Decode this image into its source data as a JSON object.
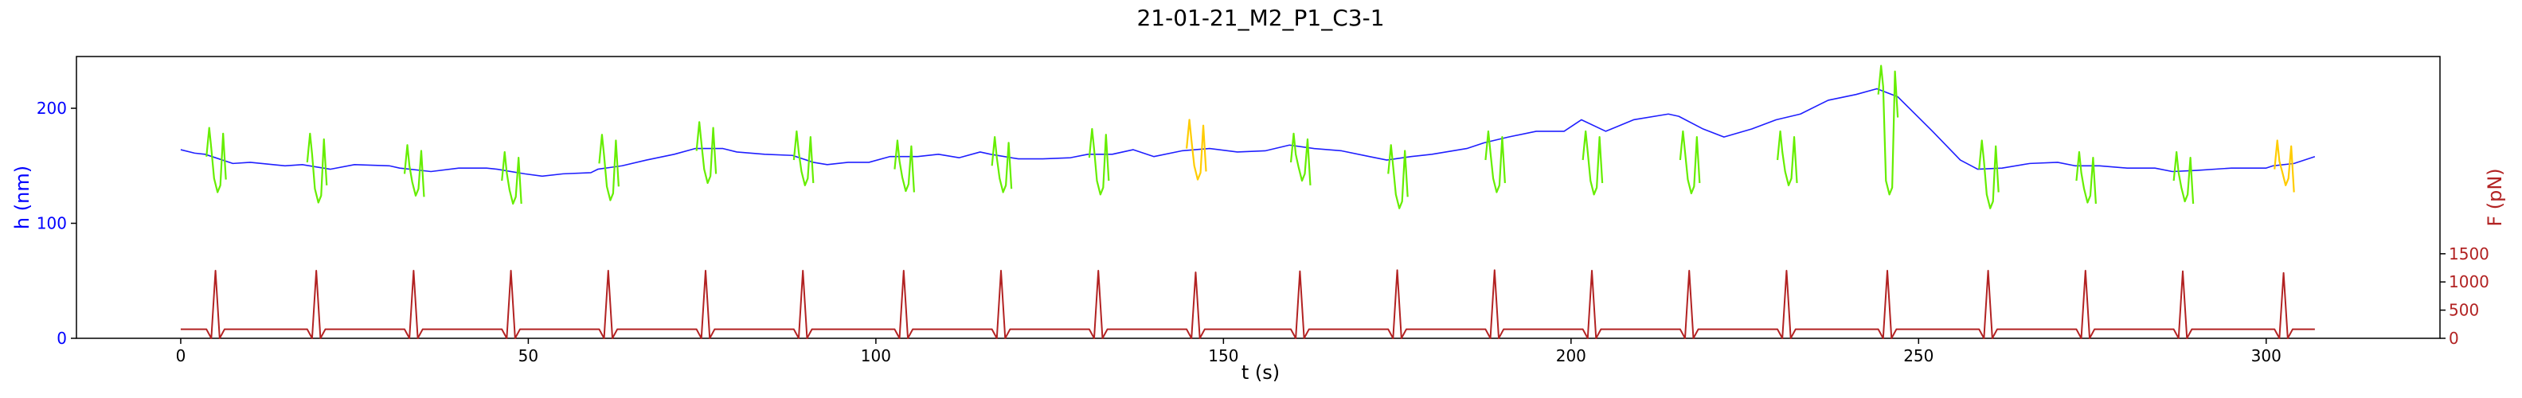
{
  "chart_data": {
    "type": "line",
    "title": "21-01-21_M2_P1_C3-1",
    "xlabel": "t (s)",
    "ylabel_left": "h (nm)",
    "ylabel_right": "F (pN)",
    "xlim": [
      -15,
      325
    ],
    "ylim_left": [
      0,
      245
    ],
    "ylim_right": [
      0,
      5000
    ],
    "x_ticks": [
      "0",
      "50",
      "100",
      "150",
      "200",
      "250",
      "300"
    ],
    "y_ticks_left": [
      "0",
      "100",
      "200"
    ],
    "y_ticks_right": [
      "0",
      "500",
      "1000",
      "1500"
    ],
    "grid": false,
    "colors": {
      "h_baseline": "#1f1fff",
      "h_indent_normal": "#66ee00",
      "h_indent_flagged": "#ffcc00",
      "force": "#b22222",
      "left_axis": "#0000ff",
      "right_axis": "#b22222"
    },
    "pulse_times": [
      5,
      19.5,
      33.5,
      47.5,
      61.5,
      75.5,
      89.5,
      104,
      118,
      132,
      146,
      161,
      175,
      189,
      203,
      217,
      231,
      245.5,
      260,
      274,
      288,
      302.5
    ],
    "pulse_peaks": [
      1200,
      1200,
      1200,
      1200,
      1200,
      1200,
      1200,
      1200,
      1200,
      1200,
      1170,
      1190,
      1210,
      1210,
      1200,
      1200,
      1200,
      1200,
      1200,
      1200,
      1190,
      1160
    ],
    "force_baseline": 160,
    "indent_min_h": [
      127,
      118,
      124,
      117,
      120,
      135,
      133,
      128,
      127,
      125,
      138,
      137,
      113,
      127,
      125,
      126,
      133,
      125,
      113,
      118,
      119,
      133
    ],
    "indent_pre_peak": [
      183,
      178,
      168,
      162,
      177,
      188,
      180,
      172,
      175,
      182,
      190,
      178,
      168,
      180,
      180,
      180,
      180,
      237,
      172,
      162,
      162,
      172
    ],
    "indent_flagged": [
      false,
      false,
      false,
      false,
      false,
      false,
      false,
      false,
      false,
      false,
      true,
      false,
      false,
      false,
      false,
      false,
      false,
      false,
      false,
      false,
      false,
      true
    ],
    "h_baseline_points": [
      [
        0,
        164
      ],
      [
        2,
        161
      ],
      [
        3.5,
        160
      ],
      [
        7.5,
        152
      ],
      [
        10,
        153
      ],
      [
        15,
        150
      ],
      [
        17.5,
        151
      ],
      [
        21.5,
        147
      ],
      [
        25,
        151
      ],
      [
        30,
        150
      ],
      [
        31.5,
        148
      ],
      [
        36,
        145
      ],
      [
        40,
        148
      ],
      [
        44,
        148
      ],
      [
        45.5,
        147
      ],
      [
        49.5,
        143
      ],
      [
        52,
        141
      ],
      [
        55,
        143
      ],
      [
        59,
        144
      ],
      [
        60,
        147
      ],
      [
        63.5,
        150
      ],
      [
        67,
        155
      ],
      [
        71,
        160
      ],
      [
        74,
        165
      ],
      [
        78,
        165
      ],
      [
        80,
        162
      ],
      [
        84,
        160
      ],
      [
        88,
        159
      ],
      [
        91,
        153
      ],
      [
        93,
        151
      ],
      [
        96,
        153
      ],
      [
        99,
        153
      ],
      [
        102,
        158
      ],
      [
        106,
        158
      ],
      [
        109,
        160
      ],
      [
        112,
        157
      ],
      [
        115,
        162
      ],
      [
        116.5,
        160
      ],
      [
        120.5,
        156
      ],
      [
        124,
        156
      ],
      [
        128,
        157
      ],
      [
        130.5,
        160
      ],
      [
        134,
        160
      ],
      [
        137,
        164
      ],
      [
        140,
        158
      ],
      [
        144,
        163
      ],
      [
        148,
        165
      ],
      [
        152,
        162
      ],
      [
        156,
        163
      ],
      [
        159.5,
        168
      ],
      [
        163,
        165
      ],
      [
        167,
        163
      ],
      [
        171,
        158
      ],
      [
        173.5,
        155
      ],
      [
        177,
        158
      ],
      [
        180,
        160
      ],
      [
        185,
        165
      ],
      [
        187.5,
        170
      ],
      [
        191,
        175
      ],
      [
        195,
        180
      ],
      [
        199,
        180
      ],
      [
        201.5,
        190
      ],
      [
        205,
        180
      ],
      [
        209,
        190
      ],
      [
        214,
        195
      ],
      [
        215.5,
        193
      ],
      [
        219,
        182
      ],
      [
        222,
        175
      ],
      [
        226,
        182
      ],
      [
        229.5,
        190
      ],
      [
        233,
        195
      ],
      [
        237,
        207
      ],
      [
        241,
        212
      ],
      [
        244,
        217
      ],
      [
        247,
        210
      ],
      [
        252,
        180
      ],
      [
        256,
        155
      ],
      [
        258.5,
        147
      ],
      [
        262,
        148
      ],
      [
        266,
        152
      ],
      [
        270,
        153
      ],
      [
        272.5,
        150
      ],
      [
        276,
        150
      ],
      [
        280,
        148
      ],
      [
        284,
        148
      ],
      [
        286.5,
        145
      ],
      [
        290,
        146
      ],
      [
        295,
        148
      ],
      [
        300,
        148
      ],
      [
        301,
        150
      ],
      [
        304,
        152
      ],
      [
        307,
        158
      ]
    ]
  }
}
